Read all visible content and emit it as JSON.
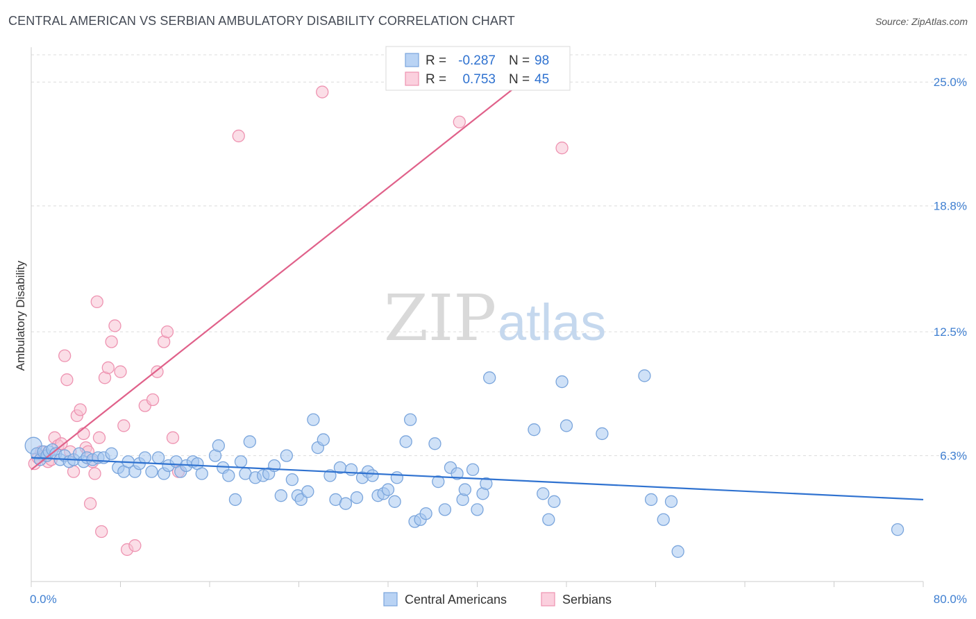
{
  "title": "CENTRAL AMERICAN VS SERBIAN AMBULATORY DISABILITY CORRELATION CHART",
  "source": "Source: ZipAtlas.com",
  "watermark": {
    "zip": "ZIP",
    "atlas": "atlas"
  },
  "legend_box": {
    "rows": [
      {
        "r_label": "R =",
        "r_value": "-0.287",
        "n_label": "N =",
        "n_value": "98",
        "color": "#8ab4e8"
      },
      {
        "r_label": "R =",
        "r_value": "0.753",
        "n_label": "N =",
        "n_value": "45",
        "color": "#f4a6bf"
      }
    ]
  },
  "bottom_legend": [
    {
      "label": "Central Americans",
      "color": "#8ab4e8"
    },
    {
      "label": "Serbians",
      "color": "#f4a6bf"
    }
  ],
  "chart_data": {
    "type": "scatter",
    "title": "CENTRAL AMERICAN VS SERBIAN AMBULATORY DISABILITY CORRELATION CHART",
    "ylabel": "Ambulatory Disability",
    "xlabel": "",
    "xlim": [
      0,
      80
    ],
    "ylim": [
      0,
      26.5
    ],
    "x_tick_labels": [
      "0.0%",
      "80.0%"
    ],
    "y_ticks": [
      6.3,
      12.5,
      18.8,
      25.0
    ],
    "y_tick_labels": [
      "6.3%",
      "12.5%",
      "18.8%",
      "25.0%"
    ],
    "grid": "horizontal dashed",
    "legend_position": "top-center",
    "colors": {
      "blue_fill": "#a8c8f0",
      "blue_stroke": "#7aa5dc",
      "blue_line": "#2f72d0",
      "pink_fill": "#f8c2d3",
      "pink_stroke": "#ee93b1",
      "pink_line": "#e0618a",
      "axis_text": "#3f7fd1"
    },
    "series": [
      {
        "name": "Central Americans",
        "trend": {
          "x": [
            0,
            80
          ],
          "y": [
            6.2,
            4.1
          ]
        },
        "points": [
          [
            0.2,
            6.8
          ],
          [
            0.5,
            6.4
          ],
          [
            0.8,
            6.1
          ],
          [
            1.1,
            6.5
          ],
          [
            1.4,
            6.3
          ],
          [
            1.6,
            6.5
          ],
          [
            1.9,
            6.6
          ],
          [
            2.2,
            6.4
          ],
          [
            2.6,
            6.1
          ],
          [
            3.0,
            6.3
          ],
          [
            3.4,
            6.0
          ],
          [
            3.8,
            6.1
          ],
          [
            4.3,
            6.4
          ],
          [
            4.7,
            6.0
          ],
          [
            5.0,
            6.2
          ],
          [
            5.5,
            6.1
          ],
          [
            6.0,
            6.2
          ],
          [
            6.5,
            6.2
          ],
          [
            7.2,
            6.4
          ],
          [
            7.8,
            5.7
          ],
          [
            8.3,
            5.5
          ],
          [
            8.7,
            6.0
          ],
          [
            9.3,
            5.5
          ],
          [
            9.7,
            5.9
          ],
          [
            10.2,
            6.2
          ],
          [
            10.8,
            5.5
          ],
          [
            11.4,
            6.2
          ],
          [
            11.9,
            5.4
          ],
          [
            12.3,
            5.8
          ],
          [
            13.0,
            6.0
          ],
          [
            13.4,
            5.5
          ],
          [
            13.9,
            5.8
          ],
          [
            14.5,
            6.0
          ],
          [
            14.9,
            5.9
          ],
          [
            15.3,
            5.4
          ],
          [
            16.5,
            6.3
          ],
          [
            16.8,
            6.8
          ],
          [
            17.2,
            5.7
          ],
          [
            17.7,
            5.3
          ],
          [
            18.3,
            4.1
          ],
          [
            18.8,
            6.0
          ],
          [
            19.2,
            5.4
          ],
          [
            19.6,
            7.0
          ],
          [
            20.1,
            5.2
          ],
          [
            20.8,
            5.3
          ],
          [
            21.3,
            5.4
          ],
          [
            21.8,
            5.8
          ],
          [
            22.4,
            4.3
          ],
          [
            22.9,
            6.3
          ],
          [
            23.4,
            5.1
          ],
          [
            23.9,
            4.3
          ],
          [
            24.2,
            4.1
          ],
          [
            24.8,
            4.5
          ],
          [
            25.3,
            8.1
          ],
          [
            25.7,
            6.7
          ],
          [
            26.2,
            7.1
          ],
          [
            26.8,
            5.3
          ],
          [
            27.3,
            4.1
          ],
          [
            27.7,
            5.7
          ],
          [
            28.2,
            3.9
          ],
          [
            28.7,
            5.6
          ],
          [
            29.2,
            4.2
          ],
          [
            29.7,
            5.2
          ],
          [
            30.2,
            5.5
          ],
          [
            30.6,
            5.3
          ],
          [
            31.1,
            4.3
          ],
          [
            31.6,
            4.4
          ],
          [
            32.0,
            4.6
          ],
          [
            32.6,
            4.0
          ],
          [
            32.8,
            5.2
          ],
          [
            33.6,
            7.0
          ],
          [
            34.0,
            8.1
          ],
          [
            34.4,
            3.0
          ],
          [
            34.9,
            3.1
          ],
          [
            35.4,
            3.4
          ],
          [
            36.2,
            6.9
          ],
          [
            36.5,
            5.0
          ],
          [
            37.1,
            3.6
          ],
          [
            37.6,
            5.7
          ],
          [
            38.2,
            5.4
          ],
          [
            38.7,
            4.1
          ],
          [
            38.9,
            4.6
          ],
          [
            39.6,
            5.6
          ],
          [
            40.0,
            3.6
          ],
          [
            40.5,
            4.4
          ],
          [
            40.8,
            4.9
          ],
          [
            41.1,
            10.2
          ],
          [
            45.1,
            7.6
          ],
          [
            45.9,
            4.4
          ],
          [
            46.4,
            3.1
          ],
          [
            46.9,
            4.0
          ],
          [
            47.6,
            10.0
          ],
          [
            48.0,
            7.8
          ],
          [
            51.2,
            7.4
          ],
          [
            55.0,
            10.3
          ],
          [
            55.6,
            4.1
          ],
          [
            56.7,
            3.1
          ],
          [
            57.4,
            4.0
          ],
          [
            58.0,
            1.5
          ],
          [
            77.7,
            2.6
          ]
        ]
      },
      {
        "name": "Serbians",
        "trend": {
          "x": [
            0,
            44
          ],
          "y": [
            5.6,
            25.0
          ]
        },
        "points": [
          [
            0.3,
            5.9
          ],
          [
            0.6,
            6.2
          ],
          [
            0.9,
            6.5
          ],
          [
            1.2,
            6.3
          ],
          [
            1.5,
            6.0
          ],
          [
            1.8,
            6.1
          ],
          [
            2.1,
            7.2
          ],
          [
            2.4,
            6.8
          ],
          [
            2.7,
            6.9
          ],
          [
            3.0,
            11.3
          ],
          [
            3.2,
            10.1
          ],
          [
            3.5,
            6.5
          ],
          [
            3.8,
            5.5
          ],
          [
            4.1,
            8.3
          ],
          [
            4.4,
            8.6
          ],
          [
            4.7,
            7.4
          ],
          [
            4.9,
            6.7
          ],
          [
            5.1,
            6.5
          ],
          [
            5.3,
            3.9
          ],
          [
            5.5,
            6.0
          ],
          [
            5.7,
            5.4
          ],
          [
            5.9,
            14.0
          ],
          [
            6.1,
            7.2
          ],
          [
            6.3,
            2.5
          ],
          [
            6.6,
            10.2
          ],
          [
            6.9,
            10.7
          ],
          [
            7.2,
            12.0
          ],
          [
            7.5,
            12.8
          ],
          [
            8.0,
            10.5
          ],
          [
            8.3,
            7.8
          ],
          [
            8.6,
            1.6
          ],
          [
            9.3,
            1.8
          ],
          [
            10.2,
            8.8
          ],
          [
            10.9,
            9.1
          ],
          [
            11.3,
            10.5
          ],
          [
            11.9,
            12.0
          ],
          [
            12.2,
            12.5
          ],
          [
            12.7,
            7.2
          ],
          [
            13.2,
            5.5
          ],
          [
            18.6,
            22.3
          ],
          [
            26.1,
            24.5
          ],
          [
            38.4,
            23.0
          ],
          [
            47.6,
            21.7
          ]
        ]
      }
    ]
  }
}
